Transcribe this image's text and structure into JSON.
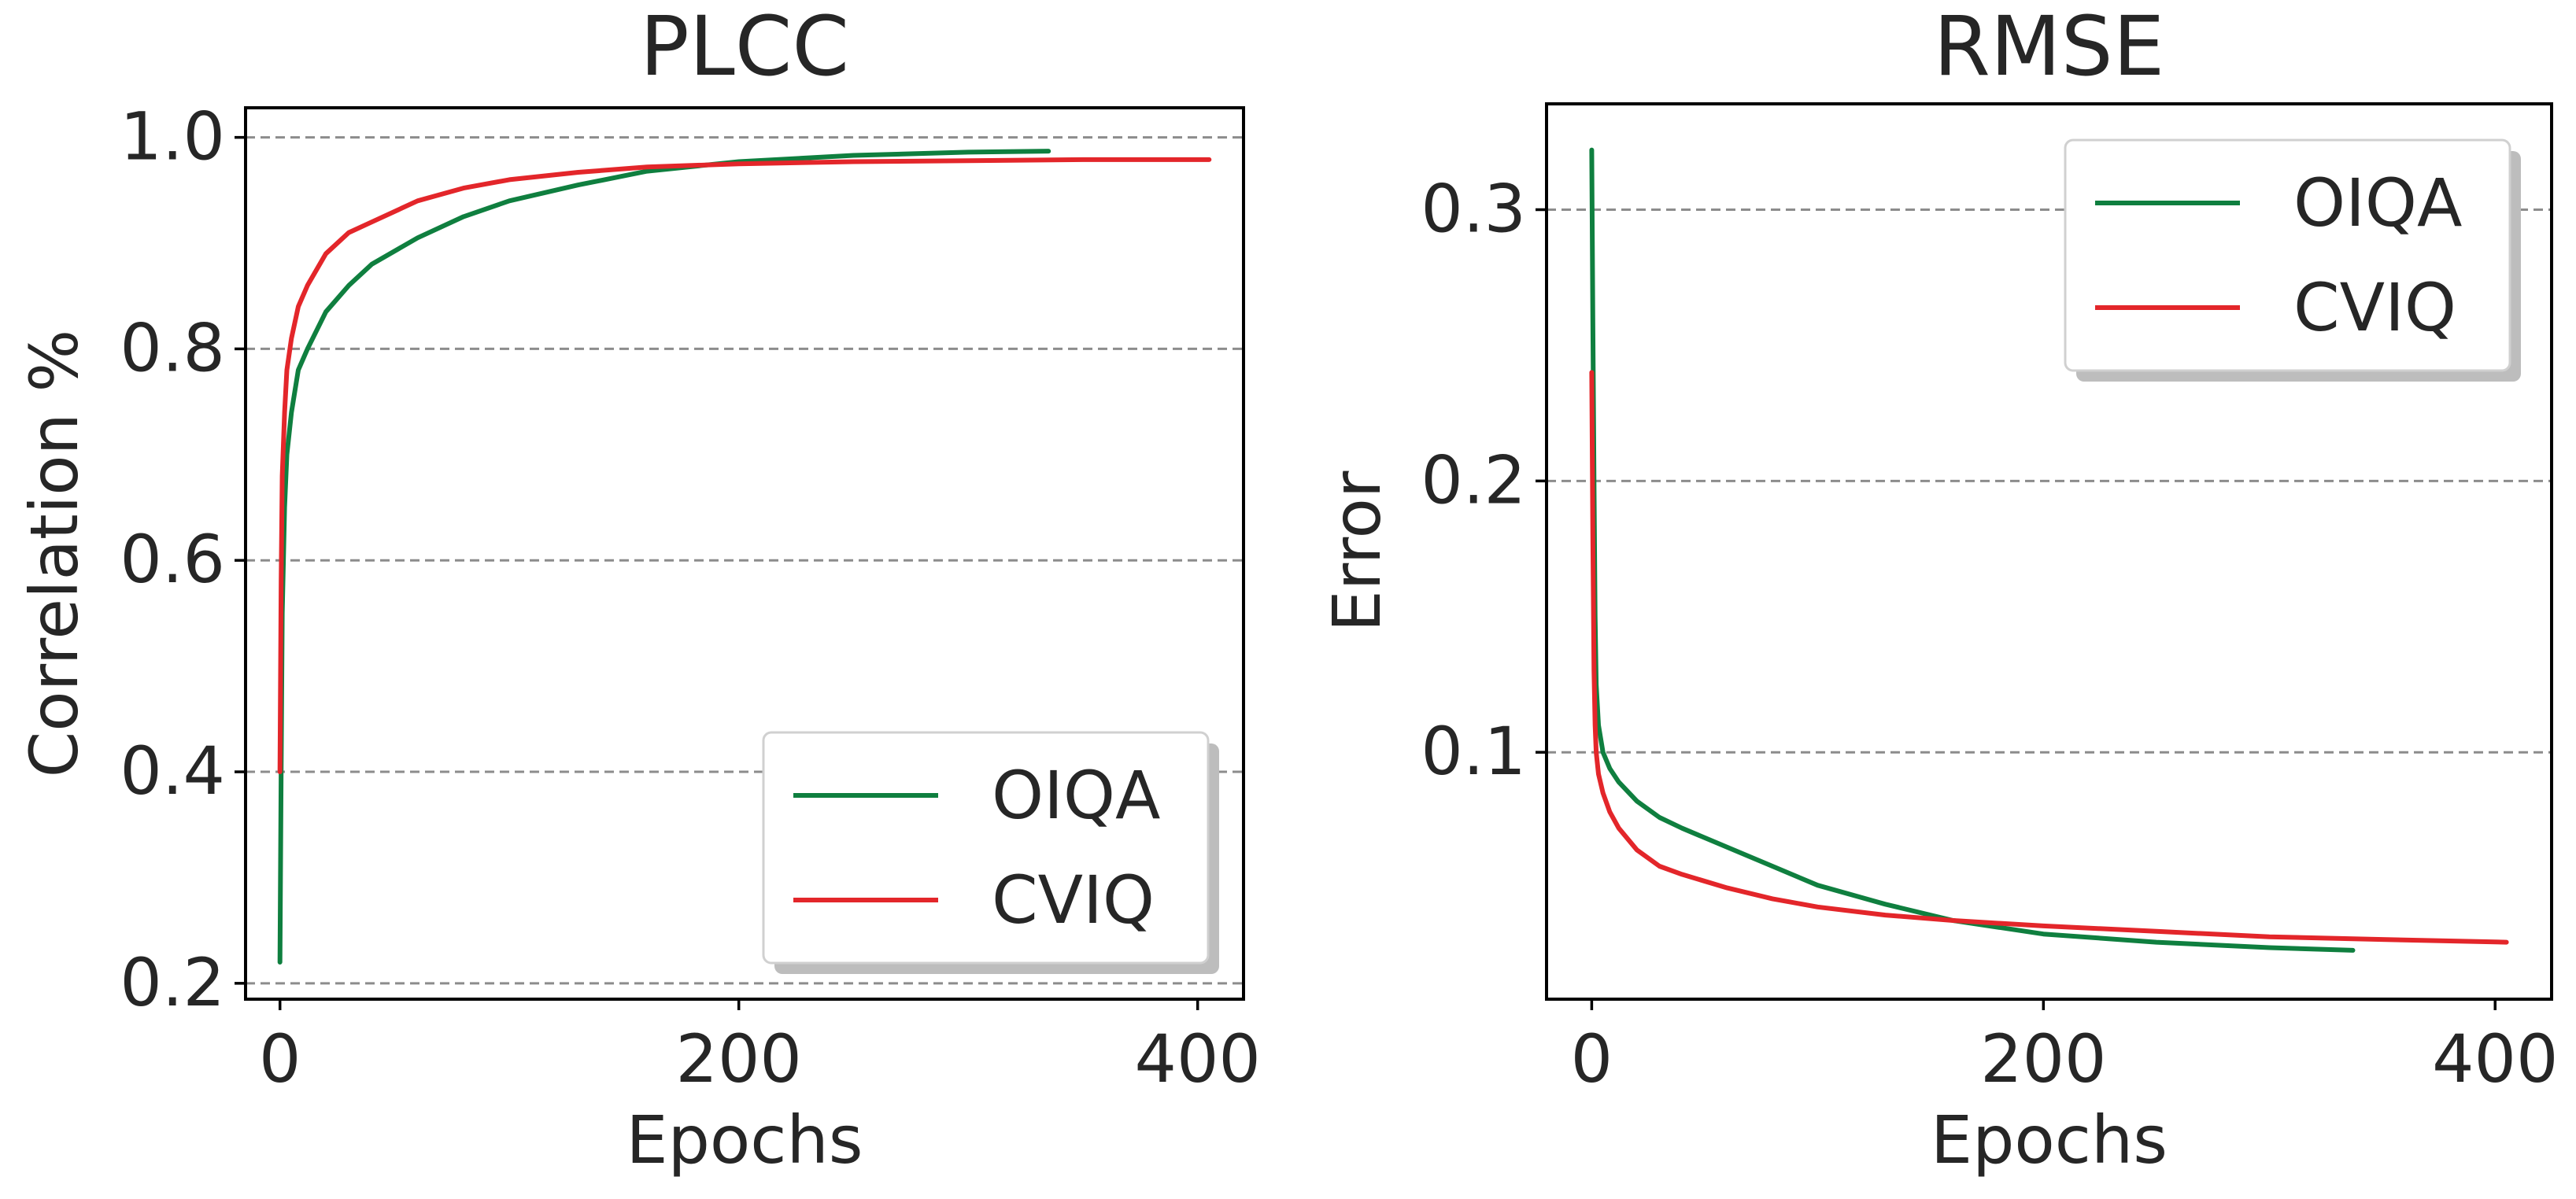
{
  "chart_data": [
    {
      "type": "line",
      "title": "PLCC",
      "xlabel": "Epochs",
      "ylabel": "Correlation %",
      "xlim": [
        -15,
        420
      ],
      "ylim": [
        0.185,
        1.028
      ],
      "xticks": [
        0,
        200,
        400
      ],
      "xtick_labels": [
        "0",
        "200",
        "400"
      ],
      "yticks": [
        0.2,
        0.4,
        0.6,
        0.8,
        1.0
      ],
      "ytick_labels": [
        "0.2",
        "0.4",
        "0.6",
        "0.8",
        "1.0"
      ],
      "grid": "y-dashed",
      "legend_position": "lower-right",
      "series": [
        {
          "name": "OIQA",
          "color": "#0f7f3f",
          "x": [
            0,
            0.5,
            1,
            2,
            3,
            5,
            8,
            12,
            20,
            30,
            40,
            60,
            80,
            100,
            130,
            160,
            200,
            250,
            300,
            335
          ],
          "y": [
            0.22,
            0.4,
            0.55,
            0.65,
            0.7,
            0.74,
            0.78,
            0.8,
            0.835,
            0.86,
            0.88,
            0.905,
            0.925,
            0.94,
            0.955,
            0.968,
            0.977,
            0.983,
            0.986,
            0.987
          ]
        },
        {
          "name": "CVIQ",
          "color": "#e3262a",
          "x": [
            0,
            0.5,
            1,
            2,
            3,
            5,
            8,
            12,
            20,
            30,
            40,
            60,
            80,
            100,
            130,
            160,
            200,
            250,
            300,
            350,
            405
          ],
          "y": [
            0.4,
            0.58,
            0.68,
            0.74,
            0.78,
            0.81,
            0.84,
            0.86,
            0.89,
            0.91,
            0.92,
            0.94,
            0.952,
            0.96,
            0.967,
            0.972,
            0.975,
            0.977,
            0.978,
            0.979,
            0.979
          ]
        }
      ]
    },
    {
      "type": "line",
      "title": "RMSE",
      "xlabel": "Epochs",
      "ylabel": "Error",
      "xlim": [
        -20,
        425
      ],
      "ylim": [
        0.009,
        0.339
      ],
      "xticks": [
        0,
        200,
        400
      ],
      "xtick_labels": [
        "0",
        "200",
        "400"
      ],
      "yticks": [
        0.1,
        0.2,
        0.3
      ],
      "ytick_labels": [
        "0.1",
        "0.2",
        "0.3"
      ],
      "grid": "y-dashed",
      "legend_position": "upper-right",
      "series": [
        {
          "name": "OIQA",
          "color": "#0f7f3f",
          "x": [
            0,
            0.5,
            1,
            1.5,
            2,
            3,
            5,
            8,
            12,
            20,
            30,
            40,
            60,
            80,
            100,
            130,
            160,
            200,
            250,
            300,
            337
          ],
          "y": [
            0.322,
            0.26,
            0.2,
            0.15,
            0.125,
            0.11,
            0.1,
            0.094,
            0.089,
            0.082,
            0.076,
            0.072,
            0.065,
            0.058,
            0.051,
            0.044,
            0.038,
            0.033,
            0.03,
            0.028,
            0.027
          ]
        },
        {
          "name": "CVIQ",
          "color": "#e3262a",
          "x": [
            0,
            0.5,
            1,
            1.5,
            2,
            3,
            5,
            8,
            12,
            20,
            30,
            40,
            60,
            80,
            100,
            130,
            160,
            200,
            250,
            300,
            350,
            405
          ],
          "y": [
            0.24,
            0.18,
            0.13,
            0.11,
            0.1,
            0.092,
            0.085,
            0.078,
            0.072,
            0.064,
            0.058,
            0.055,
            0.05,
            0.046,
            0.043,
            0.04,
            0.038,
            0.036,
            0.034,
            0.032,
            0.031,
            0.03
          ]
        }
      ]
    }
  ]
}
